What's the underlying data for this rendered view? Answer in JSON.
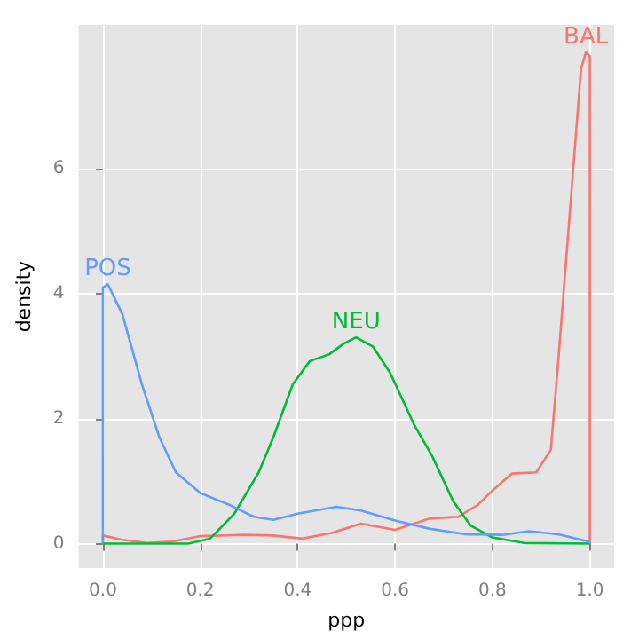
{
  "chart_data": {
    "type": "line",
    "xlabel": "ppp",
    "ylabel": "density",
    "xlim": [
      -0.05,
      1.05
    ],
    "ylim": [
      -0.39,
      8.3
    ],
    "xticks": [
      {
        "value": 0,
        "label": "0.0"
      },
      {
        "value": 0.2,
        "label": "0.2"
      },
      {
        "value": 0.4,
        "label": "0.4"
      },
      {
        "value": 0.6,
        "label": "0.6"
      },
      {
        "value": 0.8,
        "label": "0.8"
      },
      {
        "value": 1,
        "label": "1.0"
      }
    ],
    "yticks": [
      0,
      2,
      4,
      6
    ],
    "grid": true,
    "legend": false,
    "marker": "none",
    "line_style": "solid",
    "series": [
      {
        "name": "BAL",
        "color": "#f8766d",
        "x": [
          0,
          0,
          0.04,
          0.09,
          0.14,
          0.2,
          0.29,
          0.35,
          0.41,
          0.47,
          0.53,
          0.6,
          0.67,
          0.73,
          0.77,
          0.8,
          0.84,
          0.89,
          0.92,
          0.935,
          0.945,
          0.965,
          0.982,
          0.992,
          1,
          1
        ],
        "values": [
          0,
          0.13,
          0.06,
          0.01,
          0.03,
          0.12,
          0.14,
          0.13,
          0.08,
          0.17,
          0.32,
          0.22,
          0.4,
          0.43,
          0.62,
          0.85,
          1.12,
          1.14,
          1.5,
          2.9,
          3.9,
          5.9,
          7.6,
          7.86,
          7.8,
          0
        ]
      },
      {
        "name": "NEU",
        "color": "#00ba38",
        "x": [
          0,
          0.175,
          0.22,
          0.27,
          0.32,
          0.35,
          0.39,
          0.425,
          0.465,
          0.495,
          0.52,
          0.555,
          0.59,
          0.64,
          0.675,
          0.72,
          0.755,
          0.8,
          0.865,
          1
        ],
        "values": [
          0,
          0,
          0.08,
          0.48,
          1.14,
          1.7,
          2.55,
          2.92,
          3.03,
          3.2,
          3.3,
          3.15,
          2.73,
          1.89,
          1.42,
          0.67,
          0.29,
          0.1,
          0.01,
          0
        ]
      },
      {
        "name": "POS",
        "color": "#619cff",
        "x": [
          0,
          0,
          0.01,
          0.04,
          0.08,
          0.116,
          0.15,
          0.2,
          0.26,
          0.31,
          0.35,
          0.4,
          0.48,
          0.53,
          0.6,
          0.67,
          0.745,
          0.82,
          0.875,
          0.935,
          1,
          1
        ],
        "values": [
          0,
          4.1,
          4.15,
          3.67,
          2.55,
          1.7,
          1.14,
          0.81,
          0.62,
          0.43,
          0.38,
          0.48,
          0.59,
          0.53,
          0.37,
          0.24,
          0.15,
          0.14,
          0.2,
          0.15,
          0.03,
          0
        ]
      }
    ]
  }
}
